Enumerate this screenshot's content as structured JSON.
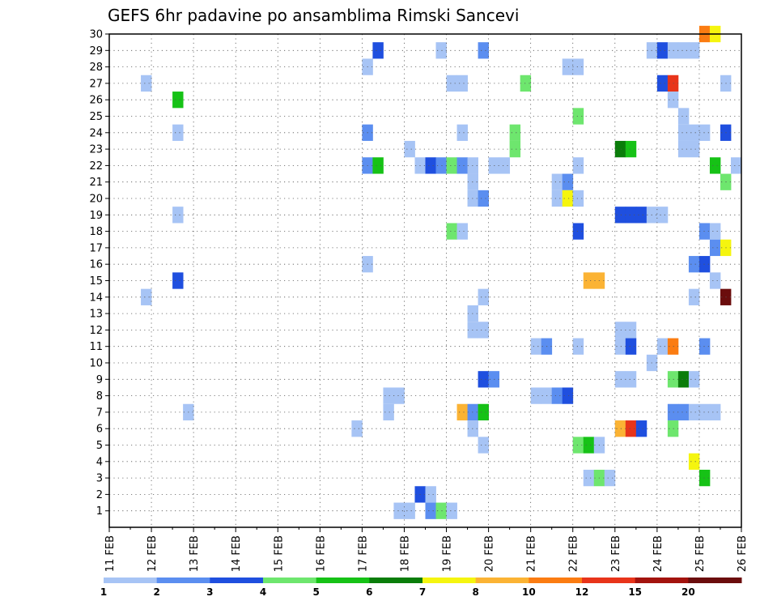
{
  "chart_data": {
    "type": "heatmap",
    "title": "GEFS 6hr padavine po ansamblima Rimski Sancevi",
    "xlabel": "",
    "ylabel": "",
    "x_tick_labels": [
      "11 FEB",
      "12 FEB",
      "13 FEB",
      "14 FEB",
      "15 FEB",
      "16 FEB",
      "17 FEB",
      "18 FEB",
      "19 FEB",
      "20 FEB",
      "21 FEB",
      "22 FEB",
      "23 FEB",
      "24 FEB",
      "25 FEB",
      "26 FEB"
    ],
    "y_tick_labels": [
      "1",
      "2",
      "3",
      "4",
      "5",
      "6",
      "7",
      "8",
      "9",
      "10",
      "11",
      "12",
      "13",
      "14",
      "15",
      "16",
      "17",
      "18",
      "19",
      "20",
      "21",
      "22",
      "23",
      "24",
      "25",
      "26",
      "27",
      "28",
      "29",
      "30"
    ],
    "x_range_days": [
      0,
      15
    ],
    "y_range": [
      0,
      30
    ],
    "grid": true,
    "legend_position": "bottom",
    "legend": {
      "boundaries": [
        "1",
        "2",
        "3",
        "4",
        "5",
        "6",
        "7",
        "8",
        "10",
        "12",
        "15",
        "20"
      ],
      "colors": [
        "#a7c4f5",
        "#5b8ef0",
        "#1f4fdf",
        "#6ee66e",
        "#16c216",
        "#0a7d0a",
        "#f5f50f",
        "#fbb334",
        "#fb7c12",
        "#e8341a",
        "#a3130e",
        "#6b0d0d"
      ]
    },
    "cells": [
      {
        "member": 30,
        "day": 14.0,
        "level": 9
      },
      {
        "member": 30,
        "day": 14.25,
        "level": 7
      },
      {
        "member": 29,
        "day": 6.25,
        "level": 3
      },
      {
        "member": 29,
        "day": 7.75,
        "level": 1
      },
      {
        "member": 29,
        "day": 8.75,
        "level": 2
      },
      {
        "member": 29,
        "day": 12.75,
        "level": 1
      },
      {
        "member": 29,
        "day": 13.0,
        "level": 3
      },
      {
        "member": 29,
        "day": 13.25,
        "level": 1
      },
      {
        "member": 29,
        "day": 13.5,
        "level": 1
      },
      {
        "member": 29,
        "day": 13.75,
        "level": 1
      },
      {
        "member": 28,
        "day": 6.0,
        "level": 1
      },
      {
        "member": 28,
        "day": 10.75,
        "level": 1
      },
      {
        "member": 28,
        "day": 11.0,
        "level": 1
      },
      {
        "member": 27,
        "day": 0.75,
        "level": 1
      },
      {
        "member": 27,
        "day": 8.0,
        "level": 1
      },
      {
        "member": 27,
        "day": 8.25,
        "level": 1
      },
      {
        "member": 27,
        "day": 9.75,
        "level": 4
      },
      {
        "member": 27,
        "day": 13.0,
        "level": 3
      },
      {
        "member": 27,
        "day": 13.25,
        "level": 10
      },
      {
        "member": 27,
        "day": 14.5,
        "level": 1
      },
      {
        "member": 26,
        "day": 1.5,
        "level": 5
      },
      {
        "member": 26,
        "day": 13.25,
        "level": 1
      },
      {
        "member": 25,
        "day": 11.0,
        "level": 4
      },
      {
        "member": 25,
        "day": 13.5,
        "level": 1
      },
      {
        "member": 24,
        "day": 1.5,
        "level": 1
      },
      {
        "member": 24,
        "day": 6.0,
        "level": 2
      },
      {
        "member": 24,
        "day": 8.25,
        "level": 1
      },
      {
        "member": 24,
        "day": 9.5,
        "level": 4
      },
      {
        "member": 24,
        "day": 13.5,
        "level": 1
      },
      {
        "member": 24,
        "day": 13.75,
        "level": 1
      },
      {
        "member": 24,
        "day": 14.0,
        "level": 1
      },
      {
        "member": 24,
        "day": 14.5,
        "level": 3
      },
      {
        "member": 23,
        "day": 7.0,
        "level": 1
      },
      {
        "member": 23,
        "day": 9.5,
        "level": 4
      },
      {
        "member": 23,
        "day": 12.0,
        "level": 6
      },
      {
        "member": 23,
        "day": 12.25,
        "level": 5
      },
      {
        "member": 23,
        "day": 13.5,
        "level": 1
      },
      {
        "member": 23,
        "day": 13.75,
        "level": 1
      },
      {
        "member": 22,
        "day": 6.0,
        "level": 2
      },
      {
        "member": 22,
        "day": 6.25,
        "level": 5
      },
      {
        "member": 22,
        "day": 7.25,
        "level": 1
      },
      {
        "member": 22,
        "day": 7.5,
        "level": 3
      },
      {
        "member": 22,
        "day": 7.75,
        "level": 2
      },
      {
        "member": 22,
        "day": 8.0,
        "level": 4
      },
      {
        "member": 22,
        "day": 8.25,
        "level": 2
      },
      {
        "member": 22,
        "day": 8.5,
        "level": 1
      },
      {
        "member": 22,
        "day": 9.0,
        "level": 1
      },
      {
        "member": 22,
        "day": 9.25,
        "level": 1
      },
      {
        "member": 22,
        "day": 11.0,
        "level": 1
      },
      {
        "member": 22,
        "day": 14.25,
        "level": 5
      },
      {
        "member": 22,
        "day": 14.75,
        "level": 1
      },
      {
        "member": 21,
        "day": 8.5,
        "level": 1
      },
      {
        "member": 21,
        "day": 10.5,
        "level": 1
      },
      {
        "member": 21,
        "day": 10.75,
        "level": 2
      },
      {
        "member": 21,
        "day": 14.5,
        "level": 4
      },
      {
        "member": 20,
        "day": 8.5,
        "level": 1
      },
      {
        "member": 20,
        "day": 8.75,
        "level": 2
      },
      {
        "member": 20,
        "day": 10.5,
        "level": 1
      },
      {
        "member": 20,
        "day": 10.75,
        "level": 7
      },
      {
        "member": 20,
        "day": 11.0,
        "level": 1
      },
      {
        "member": 19,
        "day": 1.5,
        "level": 1
      },
      {
        "member": 19,
        "day": 12.0,
        "level": 3
      },
      {
        "member": 19,
        "day": 12.25,
        "level": 3
      },
      {
        "member": 19,
        "day": 12.5,
        "level": 3
      },
      {
        "member": 19,
        "day": 12.75,
        "level": 1
      },
      {
        "member": 19,
        "day": 13.0,
        "level": 1
      },
      {
        "member": 18,
        "day": 8.0,
        "level": 4
      },
      {
        "member": 18,
        "day": 8.25,
        "level": 1
      },
      {
        "member": 18,
        "day": 11.0,
        "level": 3
      },
      {
        "member": 18,
        "day": 14.0,
        "level": 2
      },
      {
        "member": 18,
        "day": 14.25,
        "level": 1
      },
      {
        "member": 17,
        "day": 14.25,
        "level": 2
      },
      {
        "member": 17,
        "day": 14.5,
        "level": 7
      },
      {
        "member": 16,
        "day": 6.0,
        "level": 1
      },
      {
        "member": 16,
        "day": 13.75,
        "level": 2
      },
      {
        "member": 16,
        "day": 14.0,
        "level": 3
      },
      {
        "member": 15,
        "day": 1.5,
        "level": 3
      },
      {
        "member": 15,
        "day": 11.25,
        "level": 8
      },
      {
        "member": 15,
        "day": 11.5,
        "level": 8
      },
      {
        "member": 15,
        "day": 14.25,
        "level": 1
      },
      {
        "member": 14,
        "day": 0.75,
        "level": 1
      },
      {
        "member": 14,
        "day": 8.75,
        "level": 1
      },
      {
        "member": 14,
        "day": 13.75,
        "level": 1
      },
      {
        "member": 14,
        "day": 14.5,
        "level": 12
      },
      {
        "member": 13,
        "day": 8.5,
        "level": 1
      },
      {
        "member": 12,
        "day": 8.5,
        "level": 1
      },
      {
        "member": 12,
        "day": 8.75,
        "level": 1
      },
      {
        "member": 12,
        "day": 12.0,
        "level": 1
      },
      {
        "member": 12,
        "day": 12.25,
        "level": 1
      },
      {
        "member": 11,
        "day": 10.0,
        "level": 1
      },
      {
        "member": 11,
        "day": 10.25,
        "level": 2
      },
      {
        "member": 11,
        "day": 11.0,
        "level": 1
      },
      {
        "member": 11,
        "day": 12.0,
        "level": 1
      },
      {
        "member": 11,
        "day": 12.25,
        "level": 3
      },
      {
        "member": 11,
        "day": 13.0,
        "level": 1
      },
      {
        "member": 11,
        "day": 13.25,
        "level": 9
      },
      {
        "member": 11,
        "day": 14.0,
        "level": 2
      },
      {
        "member": 10,
        "day": 12.75,
        "level": 1
      },
      {
        "member": 9,
        "day": 8.75,
        "level": 3
      },
      {
        "member": 9,
        "day": 9.0,
        "level": 2
      },
      {
        "member": 9,
        "day": 12.0,
        "level": 1
      },
      {
        "member": 9,
        "day": 12.25,
        "level": 1
      },
      {
        "member": 9,
        "day": 13.25,
        "level": 4
      },
      {
        "member": 9,
        "day": 13.5,
        "level": 6
      },
      {
        "member": 9,
        "day": 13.75,
        "level": 1
      },
      {
        "member": 8,
        "day": 6.5,
        "level": 1
      },
      {
        "member": 8,
        "day": 6.75,
        "level": 1
      },
      {
        "member": 8,
        "day": 10.0,
        "level": 1
      },
      {
        "member": 8,
        "day": 10.25,
        "level": 1
      },
      {
        "member": 8,
        "day": 10.5,
        "level": 2
      },
      {
        "member": 8,
        "day": 10.75,
        "level": 3
      },
      {
        "member": 7,
        "day": 1.75,
        "level": 1
      },
      {
        "member": 7,
        "day": 6.5,
        "level": 1
      },
      {
        "member": 7,
        "day": 8.25,
        "level": 8
      },
      {
        "member": 7,
        "day": 8.5,
        "level": 2
      },
      {
        "member": 7,
        "day": 8.75,
        "level": 5
      },
      {
        "member": 7,
        "day": 13.25,
        "level": 2
      },
      {
        "member": 7,
        "day": 13.5,
        "level": 2
      },
      {
        "member": 7,
        "day": 13.75,
        "level": 1
      },
      {
        "member": 7,
        "day": 14.0,
        "level": 1
      },
      {
        "member": 7,
        "day": 14.25,
        "level": 1
      },
      {
        "member": 6,
        "day": 5.75,
        "level": 1
      },
      {
        "member": 6,
        "day": 8.5,
        "level": 1
      },
      {
        "member": 6,
        "day": 12.0,
        "level": 8
      },
      {
        "member": 6,
        "day": 12.25,
        "level": 10
      },
      {
        "member": 6,
        "day": 12.5,
        "level": 3
      },
      {
        "member": 6,
        "day": 13.25,
        "level": 4
      },
      {
        "member": 5,
        "day": 8.75,
        "level": 1
      },
      {
        "member": 5,
        "day": 11.0,
        "level": 4
      },
      {
        "member": 5,
        "day": 11.25,
        "level": 5
      },
      {
        "member": 5,
        "day": 11.5,
        "level": 1
      },
      {
        "member": 4,
        "day": 13.75,
        "level": 7
      },
      {
        "member": 3,
        "day": 11.25,
        "level": 1
      },
      {
        "member": 3,
        "day": 11.5,
        "level": 4
      },
      {
        "member": 3,
        "day": 11.75,
        "level": 1
      },
      {
        "member": 3,
        "day": 14.0,
        "level": 5
      },
      {
        "member": 2,
        "day": 7.25,
        "level": 3
      },
      {
        "member": 2,
        "day": 7.5,
        "level": 1
      },
      {
        "member": 1,
        "day": 6.75,
        "level": 1
      },
      {
        "member": 1,
        "day": 7.0,
        "level": 1
      },
      {
        "member": 1,
        "day": 7.5,
        "level": 2
      },
      {
        "member": 1,
        "day": 7.75,
        "level": 4
      },
      {
        "member": 1,
        "day": 8.0,
        "level": 1
      }
    ]
  }
}
